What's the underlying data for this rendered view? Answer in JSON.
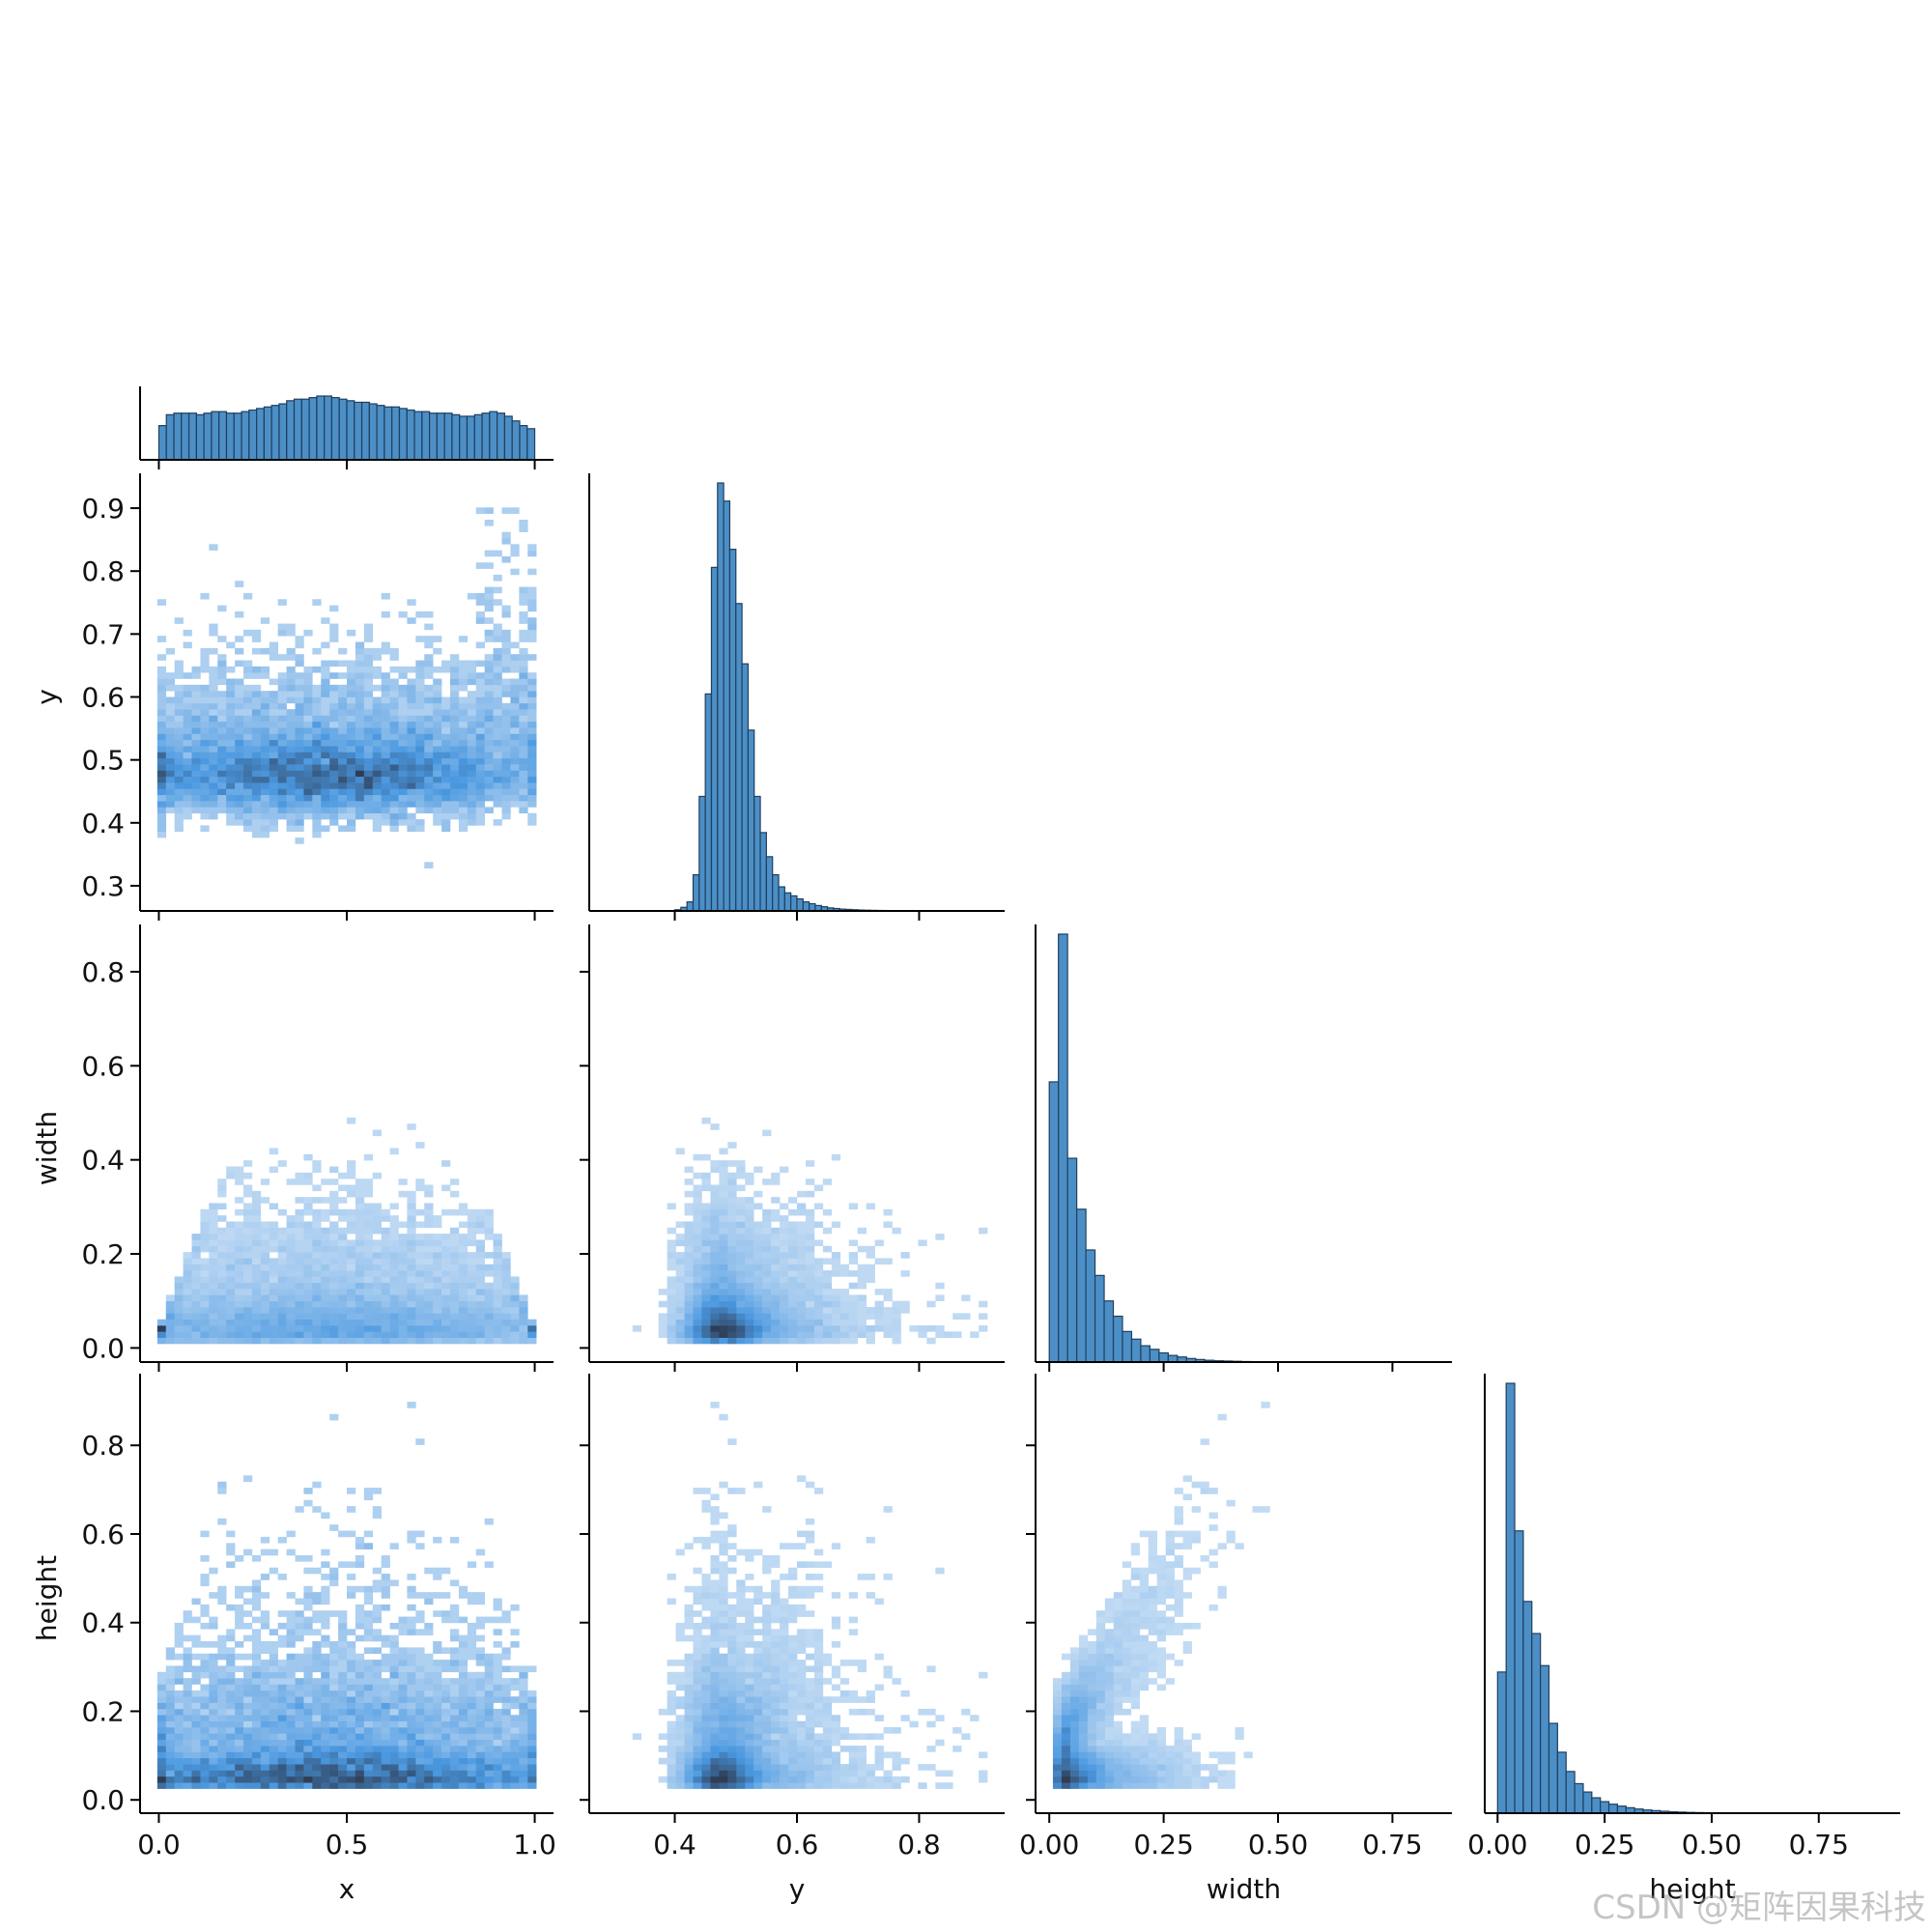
{
  "watermark": "CSDN @矩阵因果科技",
  "chart_data": {
    "type": "pairplot",
    "variables": [
      "x",
      "y",
      "width",
      "height"
    ],
    "corner": true,
    "diag_kind": "hist",
    "offdiag_kind": "hist2d",
    "colors": {
      "hist_fill": "#4c8fc6",
      "hist_edge": "#1f3f5e",
      "density_low": "#cfe2f6",
      "density_mid": "#4a98e0",
      "density_high": "#2e3d55"
    },
    "axes": {
      "x": {
        "label": "x",
        "range": [
          -0.05,
          1.05
        ],
        "ticks": [
          0.0,
          0.5,
          1.0
        ],
        "tick_labels": [
          "0.0",
          "0.5",
          "1.0"
        ]
      },
      "y": {
        "label": "y",
        "range": [
          0.26,
          0.94
        ],
        "ticks": [
          0.3,
          0.4,
          0.5,
          0.6,
          0.7,
          0.8,
          0.9
        ],
        "tick_labels": [
          "0.3",
          "0.4",
          "0.5",
          "0.6",
          "0.7",
          "0.8",
          "0.9"
        ],
        "x_ticks": [
          0.4,
          0.6,
          0.8
        ],
        "x_tick_labels": [
          "0.4",
          "0.6",
          "0.8"
        ],
        "x_range": [
          0.26,
          0.94
        ]
      },
      "width": {
        "label": "width",
        "range": [
          -0.03,
          0.88
        ],
        "ticks": [
          0.0,
          0.2,
          0.4,
          0.6,
          0.8
        ],
        "tick_labels": [
          "0.0",
          "0.2",
          "0.4",
          "0.6",
          "0.8"
        ],
        "x_ticks": [
          0.0,
          0.25,
          0.5,
          0.75
        ],
        "x_tick_labels": [
          "0.00",
          "0.25",
          "0.50",
          "0.75"
        ]
      },
      "height": {
        "label": "height",
        "range": [
          -0.03,
          0.94
        ],
        "ticks": [
          0.0,
          0.2,
          0.4,
          0.6,
          0.8
        ],
        "tick_labels": [
          "0.0",
          "0.2",
          "0.4",
          "0.6",
          "0.8"
        ],
        "x_ticks": [
          0.0,
          0.25,
          0.5,
          0.75
        ],
        "x_tick_labels": [
          "0.00",
          "0.25",
          "0.50",
          "0.75"
        ]
      }
    },
    "diagonal": {
      "x": {
        "bin_start": 0.0,
        "bin_width": 0.02,
        "counts": [
          22,
          29,
          30,
          30,
          30,
          29,
          30,
          31,
          31,
          30,
          30,
          31,
          32,
          33,
          34,
          35,
          36,
          38,
          39,
          39,
          40,
          41,
          41,
          40,
          39,
          38,
          37,
          37,
          36,
          35,
          34,
          34,
          33,
          32,
          31,
          31,
          30,
          30,
          30,
          29,
          28,
          28,
          29,
          30,
          31,
          30,
          28,
          25,
          22,
          20
        ]
      },
      "y": {
        "bin_start": 0.4,
        "bin_width": 0.01,
        "counts": [
          0.2,
          0.6,
          1.5,
          6,
          19,
          36,
          57,
          71,
          68,
          60,
          51,
          41,
          30,
          19,
          13,
          9,
          6,
          4,
          3,
          2.5,
          2,
          1.5,
          1.2,
          0.9,
          0.7,
          0.5,
          0.4,
          0.3,
          0.25,
          0.2,
          0.15,
          0.12,
          0.1,
          0.08,
          0.07,
          0.06,
          0.05,
          0.04,
          0.03,
          0.02,
          0.02,
          0.02,
          0.02,
          0.01,
          0.01,
          0.01,
          0.01
        ]
      },
      "width": {
        "bin_start": 0.0,
        "bin_width": 0.02,
        "counts": [
          55,
          84,
          40,
          30,
          22,
          17,
          12,
          9,
          6,
          4.5,
          3.2,
          2.5,
          1.8,
          1.3,
          1,
          0.7,
          0.5,
          0.35,
          0.25,
          0.2,
          0.15,
          0.1,
          0.08,
          0.06,
          0.05,
          0.04,
          0.03,
          0.02,
          0.02,
          0.01
        ]
      },
      "height": {
        "bin_start": 0.0,
        "bin_width": 0.02,
        "counts": [
          22,
          67,
          44,
          33,
          28,
          23,
          14,
          9.5,
          6.5,
          4.6,
          3.3,
          2.4,
          1.8,
          1.4,
          1.1,
          0.85,
          0.65,
          0.5,
          0.4,
          0.3,
          0.22,
          0.17,
          0.12,
          0.09,
          0.07,
          0.05,
          0.04,
          0.03,
          0.02,
          0.015,
          0.01
        ]
      }
    }
  }
}
